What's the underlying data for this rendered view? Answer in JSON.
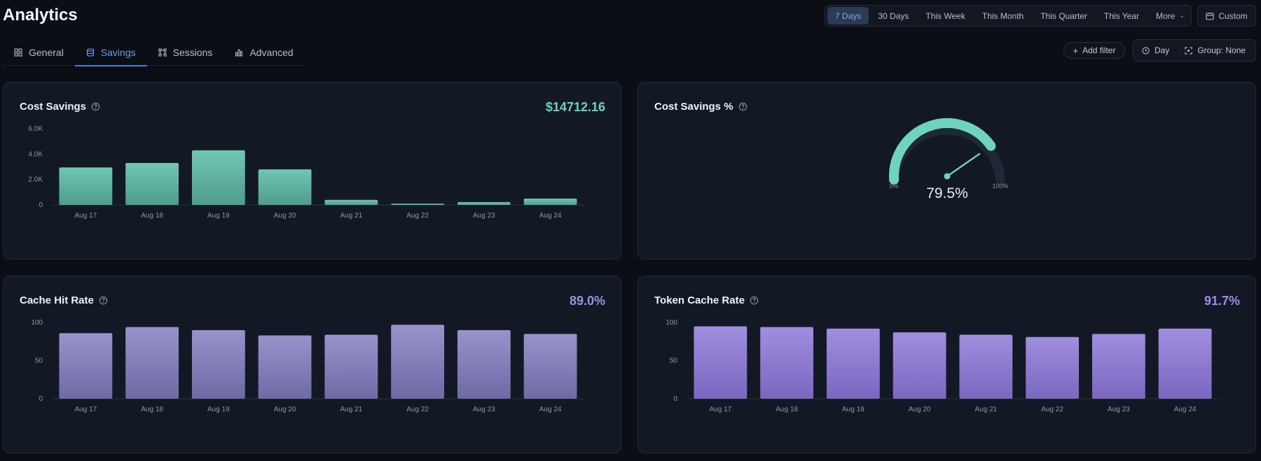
{
  "header": {
    "title": "Analytics"
  },
  "range": {
    "options": [
      "7 Days",
      "30 Days",
      "This Week",
      "This Month",
      "This Quarter",
      "This Year"
    ],
    "active_index": 0,
    "more_label": "More",
    "custom_label": "Custom"
  },
  "tabs": [
    {
      "label": "General",
      "icon": "grid-icon",
      "active": false
    },
    {
      "label": "Savings",
      "icon": "database-icon",
      "active": true
    },
    {
      "label": "Sessions",
      "icon": "nodes-icon",
      "active": false
    },
    {
      "label": "Advanced",
      "icon": "bar-chart-icon",
      "active": false
    }
  ],
  "filters": {
    "add_filter_label": "Add filter",
    "interval_label": "Day",
    "group_label": "Group: None"
  },
  "cards": {
    "cost_savings": {
      "title": "Cost Savings",
      "value": "$14712.16",
      "value_color": "#6fd1bc"
    },
    "cost_savings_pct": {
      "title": "Cost Savings %"
    },
    "cache_hit_rate": {
      "title": "Cache Hit Rate",
      "value": "89.0%",
      "value_color": "#9d93dc"
    },
    "token_cache_rate": {
      "title": "Token Cache Rate",
      "value": "91.7%",
      "value_color": "#a08be6"
    }
  },
  "chart_data": [
    {
      "type": "bar",
      "categories": [
        "Aug 17",
        "Aug 18",
        "Aug 19",
        "Aug 20",
        "Aug 21",
        "Aug 22",
        "Aug 23",
        "Aug 24"
      ],
      "values": [
        2950,
        3300,
        4300,
        2800,
        400,
        100,
        230,
        500
      ],
      "ylim": [
        0,
        6000
      ],
      "yticks": [
        "0",
        "2.0K",
        "4.0K",
        "6.0K"
      ],
      "color_top": "#70c8b2",
      "color_bottom": "#4f9c8a"
    },
    {
      "type": "gauge",
      "value": 79.5,
      "range": [
        0,
        100
      ],
      "value_label": "79.5%",
      "min_label": "0%",
      "max_label": "100%",
      "color": "#6fd4bf"
    },
    {
      "type": "bar",
      "categories": [
        "Aug 17",
        "Aug 18",
        "Aug 19",
        "Aug 20",
        "Aug 21",
        "Aug 22",
        "Aug 23",
        "Aug 24"
      ],
      "values": [
        86,
        94,
        90,
        83,
        84,
        97,
        90,
        85
      ],
      "ylim": [
        0,
        100
      ],
      "yticks": [
        "0",
        "50",
        "100"
      ],
      "color_top": "#9993cc",
      "color_bottom": "#6e6aa6"
    },
    {
      "type": "bar",
      "categories": [
        "Aug 17",
        "Aug 18",
        "Aug 19",
        "Aug 20",
        "Aug 21",
        "Aug 22",
        "Aug 23",
        "Aug 24"
      ],
      "values": [
        95,
        94,
        92,
        87,
        84,
        81,
        85,
        92
      ],
      "ylim": [
        0,
        100
      ],
      "yticks": [
        "0",
        "50",
        "100"
      ],
      "color_top": "#a08ee0",
      "color_bottom": "#7b67c0"
    }
  ]
}
